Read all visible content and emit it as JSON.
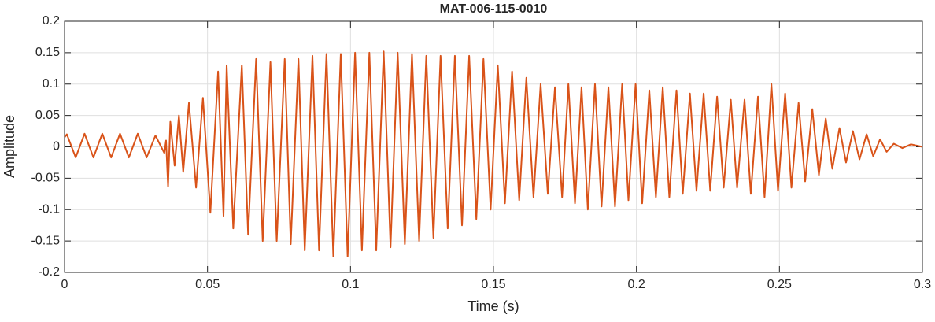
{
  "chart_data": {
    "type": "line",
    "title": "MAT-006-115-0010",
    "xlabel": "Time (s)",
    "ylabel": "Amplitude",
    "xlim": [
      0,
      0.3
    ],
    "ylim": [
      -0.2,
      0.2
    ],
    "xticks": [
      0,
      0.05,
      0.1,
      0.15,
      0.2,
      0.25,
      0.3
    ],
    "yticks": [
      -0.2,
      -0.15,
      -0.1,
      -0.05,
      0,
      0.05,
      0.1,
      0.15,
      0.2
    ],
    "grid": true,
    "x": [
      0,
      0.0008,
      0.0039,
      0.007,
      0.0101,
      0.0132,
      0.0163,
      0.0194,
      0.0225,
      0.0256,
      0.0287,
      0.0318,
      0.0349,
      0.0355,
      0.0362,
      0.037,
      0.0385,
      0.04,
      0.0415,
      0.0435,
      0.046,
      0.0484,
      0.051,
      0.0537,
      0.0556,
      0.0567,
      0.059,
      0.062,
      0.0642,
      0.067,
      0.0693,
      0.072,
      0.0742,
      0.077,
      0.0791,
      0.0818,
      0.084,
      0.0867,
      0.089,
      0.0916,
      0.094,
      0.0966,
      0.099,
      0.1016,
      0.104,
      0.1066,
      0.109,
      0.1116,
      0.114,
      0.1165,
      0.119,
      0.1215,
      0.124,
      0.1265,
      0.129,
      0.1315,
      0.134,
      0.1365,
      0.139,
      0.1415,
      0.144,
      0.1465,
      0.149,
      0.1515,
      0.154,
      0.1565,
      0.159,
      0.1615,
      0.164,
      0.1665,
      0.169,
      0.1715,
      0.174,
      0.1762,
      0.1785,
      0.1808,
      0.183,
      0.1855,
      0.1878,
      0.1902,
      0.1925,
      0.195,
      0.1972,
      0.1997,
      0.202,
      0.2045,
      0.2068,
      0.2092,
      0.2115,
      0.214,
      0.2162,
      0.2187,
      0.221,
      0.2235,
      0.2258,
      0.2282,
      0.2305,
      0.233,
      0.2352,
      0.2378,
      0.24,
      0.2425,
      0.2448,
      0.2472,
      0.2495,
      0.252,
      0.2542,
      0.2567,
      0.259,
      0.2615,
      0.2638,
      0.2662,
      0.2685,
      0.271,
      0.2733,
      0.2757,
      0.278,
      0.2805,
      0.2828,
      0.2852,
      0.2875,
      0.29,
      0.293,
      0.296,
      0.3
    ],
    "series": [
      {
        "name": "Amplitude",
        "color": "#d95319",
        "values": [
          0.015,
          0.02,
          -0.017,
          0.021,
          -0.017,
          0.021,
          -0.017,
          0.021,
          -0.017,
          0.021,
          -0.017,
          0.018,
          -0.01,
          0.01,
          -0.063,
          0.04,
          -0.03,
          0.05,
          -0.04,
          0.07,
          -0.065,
          0.078,
          -0.105,
          0.12,
          -0.11,
          0.13,
          -0.13,
          0.13,
          -0.14,
          0.14,
          -0.15,
          0.135,
          -0.15,
          0.14,
          -0.155,
          0.14,
          -0.165,
          0.145,
          -0.165,
          0.148,
          -0.175,
          0.148,
          -0.175,
          0.15,
          -0.165,
          0.15,
          -0.165,
          0.152,
          -0.16,
          0.15,
          -0.155,
          0.148,
          -0.15,
          0.145,
          -0.145,
          0.145,
          -0.13,
          0.145,
          -0.125,
          0.145,
          -0.115,
          0.14,
          -0.1,
          0.13,
          -0.09,
          0.12,
          -0.085,
          0.11,
          -0.08,
          0.1,
          -0.075,
          0.095,
          -0.08,
          0.1,
          -0.09,
          0.095,
          -0.1,
          0.1,
          -0.095,
          0.095,
          -0.095,
          0.1,
          -0.085,
          0.1,
          -0.09,
          0.09,
          -0.08,
          0.095,
          -0.08,
          0.09,
          -0.075,
          0.085,
          -0.07,
          0.085,
          -0.07,
          0.08,
          -0.065,
          0.075,
          -0.065,
          0.075,
          -0.075,
          0.08,
          -0.08,
          0.1,
          -0.07,
          0.085,
          -0.065,
          0.07,
          -0.055,
          0.06,
          -0.045,
          0.045,
          -0.035,
          0.03,
          -0.025,
          0.025,
          -0.02,
          0.02,
          -0.015,
          0.012,
          -0.008,
          0.005,
          -0.002,
          0.004,
          0
        ]
      }
    ]
  }
}
